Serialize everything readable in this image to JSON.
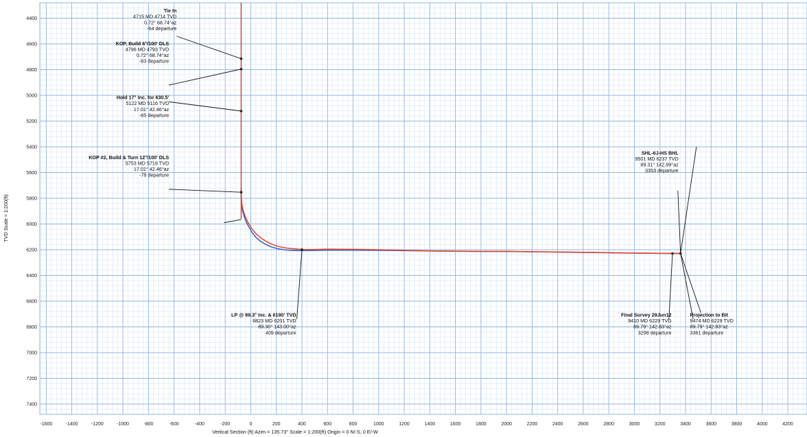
{
  "chart_data": {
    "type": "line",
    "title": "",
    "xlabel": "Vertical Section (ft) Azim = 135.73° Scale = 1:200(ft)  Origin = 0 N/-S, 0 E/-W",
    "ylabel": "TVD Scale = 1:200(ft)",
    "xlim": [
      -1650,
      4350
    ],
    "ylim": [
      7480,
      4280
    ],
    "y_inverted": true,
    "grid": true,
    "minor_grid": true,
    "x_ticks": [
      -1600,
      -1400,
      -1200,
      -1000,
      -800,
      -600,
      -400,
      -200,
      0,
      200,
      400,
      600,
      800,
      1000,
      1200,
      1400,
      1600,
      1800,
      2000,
      2200,
      2400,
      2600,
      2800,
      3000,
      3200,
      3400,
      3600,
      3800,
      4000,
      4200
    ],
    "y_ticks": [
      4400,
      4600,
      4800,
      5000,
      5200,
      5400,
      5600,
      5800,
      6000,
      6200,
      6400,
      6600,
      6800,
      7000,
      7200,
      7400
    ],
    "colors": {
      "grid_major": "#8fb4e3",
      "grid_minor": "#cfe0f5",
      "plan": "#e8412c",
      "actual": "#3b63c8",
      "callout": "#111111",
      "tick_text": "#222222"
    },
    "series": [
      {
        "key": "plan",
        "x": [
          -75,
          -75,
          -75,
          -75,
          -75,
          -74,
          -70,
          -63,
          -50,
          -32,
          -10,
          15,
          45,
          80,
          120,
          165,
          215,
          270,
          330,
          400,
          480,
          600,
          800,
          1000,
          1200,
          1400,
          1600,
          1800,
          2000,
          2200,
          2400,
          2600,
          2800,
          3000,
          3200,
          3300,
          3361
        ],
        "y": [
          4280,
          4715,
          4796,
          5122,
          5720,
          5785,
          5840,
          5880,
          5925,
          5968,
          6008,
          6045,
          6080,
          6110,
          6135,
          6158,
          6175,
          6186,
          6192,
          6198,
          6199,
          6195,
          6197,
          6200,
          6205,
          6210,
          6212,
          6214,
          6213,
          6216,
          6217,
          6220,
          6223,
          6226,
          6228,
          6229,
          6229
        ]
      },
      {
        "key": "plan_lower",
        "x": [
          -75,
          -75
        ],
        "y": [
          5720,
          5960
        ]
      },
      {
        "key": "actual",
        "x": [
          -75,
          -75,
          -72,
          -65,
          -52,
          -35,
          -12,
          12,
          40,
          75,
          115,
          160,
          210,
          265,
          325,
          400,
          500,
          600,
          800,
          1000,
          1200,
          1400,
          1600,
          1800,
          2000,
          2200,
          2400,
          2600,
          2800,
          3000,
          3200,
          3298,
          3361
        ],
        "y": [
          5725,
          5790,
          5850,
          5895,
          5940,
          5985,
          6028,
          6068,
          6104,
          6134,
          6158,
          6178,
          6192,
          6201,
          6206,
          6207,
          6206,
          6204,
          6204,
          6205,
          6207,
          6209,
          6211,
          6213,
          6214,
          6216,
          6218,
          6221,
          6224,
          6226,
          6228,
          6229,
          6229
        ]
      }
    ],
    "markers": [
      {
        "x": -75,
        "y": 4715
      },
      {
        "x": -75,
        "y": 4796
      },
      {
        "x": -75,
        "y": 5122
      },
      {
        "x": -75,
        "y": 5753
      },
      {
        "x": 400,
        "y": 6199
      },
      {
        "x": 3298,
        "y": 6229
      },
      {
        "x": 3361,
        "y": 6229
      }
    ],
    "annotations": [
      {
        "lines": [
          "Tie In",
          "4715 MD  4714 TVD",
          "0.72°  68.74°az",
          "-64 departure"
        ],
        "text_anchor_x": -580,
        "text_top_y": 4355,
        "align": "end",
        "leader_from": [
          -580,
          4540
        ],
        "leader_to": [
          -75,
          4715
        ]
      },
      {
        "lines": [
          "KOP, Build 6°/100' DLS",
          "4796 MD  4793 TVD",
          "0.72°  68.74°az",
          "-63 departure"
        ],
        "text_anchor_x": -640,
        "text_top_y": 4610,
        "align": "end",
        "leader_from": [
          -640,
          4920
        ],
        "leader_to": [
          -75,
          4796
        ]
      },
      {
        "lines": [
          "Hold 17° Inc. for 630.5'",
          "5122 MD  5116 TVD",
          "17.01°  42.46°az",
          "-65 departure"
        ],
        "text_anchor_x": -640,
        "text_top_y": 5030,
        "align": "end",
        "leader_from": [
          -640,
          5050
        ],
        "leader_to": [
          -75,
          5122
        ]
      },
      {
        "lines": [
          "KOP #2, Build & Turn 12°/100' DLS",
          "5753 MD  5719 TVD",
          "17.01°  42.46°az",
          "-78 departure"
        ],
        "text_anchor_x": -640,
        "text_top_y": 5495,
        "align": "end",
        "leader_from": [
          -640,
          5730
        ],
        "leader_to": [
          -75,
          5753
        ]
      },
      {
        "lines": [
          "LP @ 89.3° Inc. & 6190' TVD",
          "6823 MD  6201 TVD",
          "89.30°  143.00°az",
          "409 departure"
        ],
        "text_anchor_x": 355,
        "text_top_y": 6720,
        "align": "end",
        "leader_from": [
          360,
          6740
        ],
        "leader_to": [
          400,
          6199
        ]
      },
      {
        "lines": [
          "SHL-6J-HS BHL",
          "9501 MD  6237 TVD",
          "89.31°  142.99°az",
          "3353 departure"
        ],
        "text_anchor_x": 3345,
        "text_top_y": 5460,
        "align": "end",
        "leader_from": [
          3340,
          5740
        ],
        "leader_to": [
          3361,
          6229
        ]
      },
      {
        "lines": [
          "Final Survey 29Jun12",
          "9410 MD  6229 TVD",
          "89.79°  142.83°az",
          "3298 departure"
        ],
        "text_anchor_x": 3290,
        "text_top_y": 6720,
        "align": "end",
        "leader_from": [
          3270,
          6740
        ],
        "leader_to": [
          3298,
          6229
        ]
      },
      {
        "lines": [
          "Projection to Bit",
          "9474 MD  6229 TVD",
          "89.79°  142.83°az",
          "3361 departure"
        ],
        "text_anchor_x": 3435,
        "text_top_y": 6720,
        "align": "start",
        "leader_from": [
          3460,
          6740
        ],
        "leader_to": [
          3361,
          6229
        ]
      }
    ],
    "extra_leaders": [
      {
        "from": [
          3361,
          6229
        ],
        "to": [
          3485,
          5400
        ]
      },
      {
        "from": [
          3361,
          6229
        ],
        "to": [
          3520,
          6690
        ]
      },
      {
        "from": [
          -75,
          5965
        ],
        "to": [
          -210,
          5990
        ]
      }
    ]
  }
}
